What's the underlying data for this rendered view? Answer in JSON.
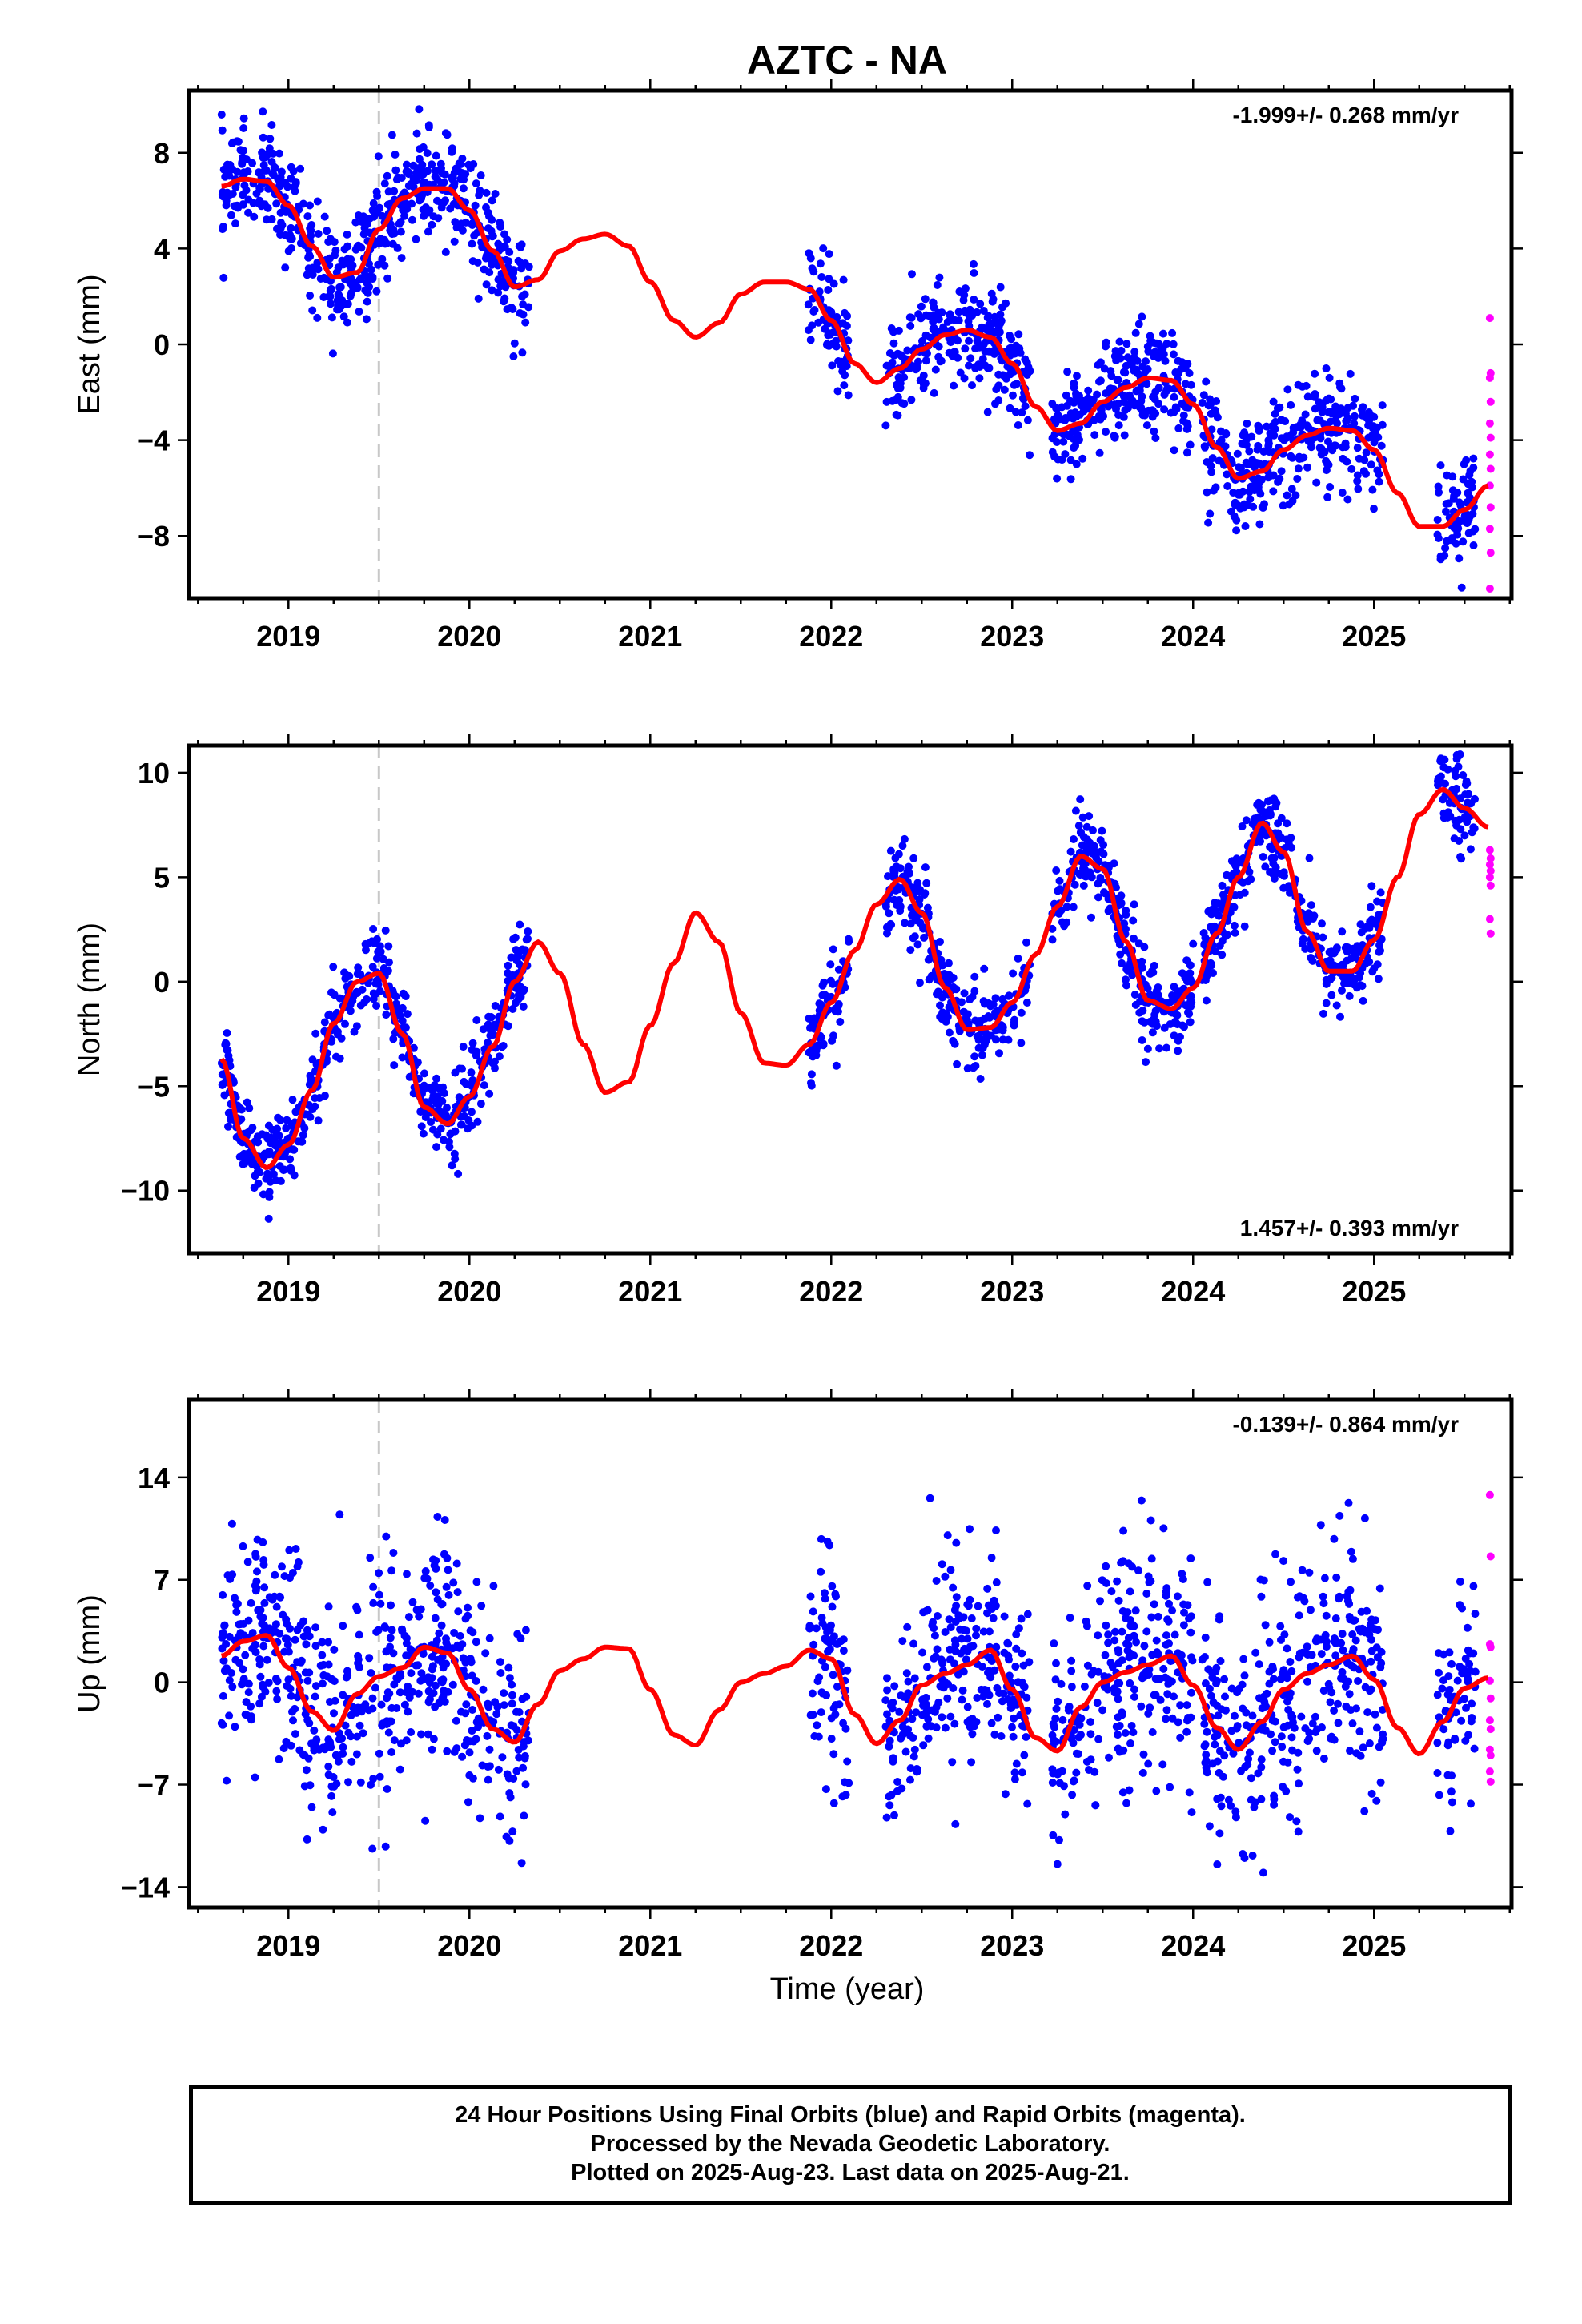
{
  "title": "AZTC - NA",
  "colors": {
    "final": "#0000ff",
    "rapid": "#ff00ff",
    "model": "#ff0000",
    "event": "#c8c8c8"
  },
  "chart_data": [
    {
      "type": "scatter",
      "ylabel": "East (mm)",
      "rate": "-1.999+/- 0.268 mm/yr",
      "rate_position": "top-right",
      "xlim": [
        2018.45,
        2025.76
      ],
      "ylim": [
        -10.6,
        10.6
      ],
      "yticks": [
        -8,
        -4,
        0,
        4,
        8
      ],
      "ytick_labels": [
        "−8",
        "−4",
        "0",
        "4",
        "8"
      ],
      "xticks": [
        2019,
        2020,
        2021,
        2022,
        2023,
        2024,
        2025
      ],
      "event_lines": [
        2019.5
      ],
      "model": {
        "x": [
          2018.63,
          2018.75,
          2018.88,
          2019.0,
          2019.13,
          2019.25,
          2019.38,
          2019.5,
          2019.63,
          2019.75,
          2019.88,
          2020.0,
          2020.13,
          2020.25,
          2020.38,
          2020.5,
          2020.63,
          2020.75,
          2020.88,
          2021.0,
          2021.13,
          2021.25,
          2021.38,
          2021.5,
          2021.63,
          2021.75,
          2021.88,
          2022.0,
          2022.13,
          2022.25,
          2022.38,
          2022.5,
          2022.63,
          2022.75,
          2022.88,
          2023.0,
          2023.13,
          2023.25,
          2023.38,
          2023.5,
          2023.63,
          2023.75,
          2023.88,
          2024.0,
          2024.13,
          2024.25,
          2024.38,
          2024.5,
          2024.63,
          2024.75,
          2024.88,
          2025.0,
          2025.13,
          2025.25,
          2025.38,
          2025.5,
          2025.63
        ],
        "y": [
          6.6,
          6.9,
          6.8,
          5.8,
          4.1,
          2.8,
          3.0,
          4.8,
          6.1,
          6.5,
          6.5,
          5.6,
          3.9,
          2.4,
          2.7,
          3.9,
          4.4,
          4.6,
          4.1,
          2.6,
          1.0,
          0.3,
          0.9,
          2.1,
          2.6,
          2.6,
          2.3,
          1.0,
          -0.8,
          -1.6,
          -1.0,
          -0.2,
          0.4,
          0.6,
          0.3,
          -0.8,
          -2.6,
          -3.6,
          -3.3,
          -2.4,
          -1.8,
          -1.4,
          -1.5,
          -2.5,
          -4.3,
          -5.6,
          -5.3,
          -4.4,
          -3.8,
          -3.5,
          -3.6,
          -4.4,
          -6.2,
          -7.6,
          -7.6,
          -6.9,
          -5.9
        ]
      },
      "segments": [
        [
          2018.63,
          2019.65
        ],
        [
          2019.65,
          2020.33
        ],
        [
          2021.87,
          2022.1
        ],
        [
          2022.3,
          2023.1
        ],
        [
          2023.22,
          2024.0
        ],
        [
          2024.05,
          2025.05
        ],
        [
          2025.35,
          2025.56
        ]
      ],
      "rapid_values": [
        1.1,
        -1.2,
        -1.4,
        -2.4,
        -3.3,
        -3.9,
        -4.6,
        -5.2,
        -5.9,
        -6.8,
        -7.7,
        -8.7,
        -10.2
      ],
      "rapid_x": [
        2025.64,
        2025.64
      ]
    },
    {
      "type": "scatter",
      "ylabel": "North (mm)",
      "rate": "1.457+/- 0.393 mm/yr",
      "rate_position": "bottom-right",
      "xlim": [
        2018.45,
        2025.76
      ],
      "ylim": [
        -13.0,
        11.3
      ],
      "yticks": [
        -10,
        -5,
        0,
        5,
        10
      ],
      "ytick_labels": [
        "−10",
        "−5",
        "0",
        "5",
        "10"
      ],
      "xticks": [
        2019,
        2020,
        2021,
        2022,
        2023,
        2024,
        2025
      ],
      "event_lines": [
        2019.5
      ],
      "model": {
        "x": [
          2018.63,
          2018.75,
          2018.88,
          2019.0,
          2019.13,
          2019.25,
          2019.38,
          2019.5,
          2019.63,
          2019.75,
          2019.88,
          2020.0,
          2020.13,
          2020.25,
          2020.38,
          2020.5,
          2020.63,
          2020.75,
          2020.88,
          2021.0,
          2021.13,
          2021.25,
          2021.38,
          2021.5,
          2021.63,
          2021.75,
          2021.88,
          2022.0,
          2022.13,
          2022.25,
          2022.38,
          2022.5,
          2022.63,
          2022.75,
          2022.88,
          2023.0,
          2023.13,
          2023.25,
          2023.38,
          2023.5,
          2023.63,
          2023.75,
          2023.88,
          2024.0,
          2024.13,
          2024.25,
          2024.38,
          2024.5,
          2024.63,
          2024.75,
          2024.88,
          2025.0,
          2025.13,
          2025.25,
          2025.38,
          2025.5,
          2025.63
        ],
        "y": [
          -3.7,
          -7.5,
          -8.9,
          -7.8,
          -5.2,
          -2.0,
          0.0,
          0.4,
          -2.5,
          -6.0,
          -6.8,
          -5.5,
          -3.1,
          0.0,
          1.9,
          0.4,
          -3.0,
          -5.3,
          -4.8,
          -2.1,
          0.9,
          3.3,
          1.9,
          -1.5,
          -3.9,
          -4.0,
          -3.0,
          -1.0,
          1.5,
          3.7,
          4.9,
          3.3,
          -0.3,
          -2.3,
          -2.2,
          -1.0,
          1.3,
          3.6,
          6.0,
          5.4,
          1.9,
          -0.9,
          -1.3,
          -0.3,
          2.3,
          5.0,
          7.6,
          6.2,
          2.4,
          0.5,
          0.5,
          2.0,
          5.0,
          8.0,
          9.2,
          8.3,
          7.4
        ]
      },
      "segments": [
        [
          2018.63,
          2019.65
        ],
        [
          2019.65,
          2020.33
        ],
        [
          2021.87,
          2022.1
        ],
        [
          2022.3,
          2023.1
        ],
        [
          2023.22,
          2024.0
        ],
        [
          2024.05,
          2025.05
        ],
        [
          2025.35,
          2025.56
        ]
      ],
      "rapid_values": [
        6.3,
        5.9,
        5.6,
        5.3,
        5.0,
        4.6,
        3.0,
        2.3
      ],
      "rapid_x": [
        2025.64,
        2025.64
      ]
    },
    {
      "type": "scatter",
      "ylabel": "Up (mm)",
      "rate": "-0.139+/- 0.864 mm/yr",
      "rate_position": "top-right",
      "xlet": "Time (year)",
      "xlabel": "Time (year)",
      "xlim": [
        2018.45,
        2025.76
      ],
      "ylim": [
        -15.4,
        19.3
      ],
      "yticks": [
        -14,
        -7,
        0,
        7,
        14
      ],
      "ytick_labels": [
        "−14",
        "−7",
        "0",
        "7",
        "14"
      ],
      "xticks": [
        2019,
        2020,
        2021,
        2022,
        2023,
        2024,
        2025
      ],
      "event_lines": [
        2019.5
      ],
      "model": {
        "x": [
          2018.63,
          2018.75,
          2018.88,
          2019.0,
          2019.13,
          2019.25,
          2019.38,
          2019.5,
          2019.63,
          2019.75,
          2019.88,
          2020.0,
          2020.13,
          2020.25,
          2020.38,
          2020.5,
          2020.63,
          2020.75,
          2020.88,
          2021.0,
          2021.13,
          2021.25,
          2021.38,
          2021.5,
          2021.63,
          2021.75,
          2021.88,
          2022.0,
          2022.13,
          2022.25,
          2022.38,
          2022.5,
          2022.63,
          2022.75,
          2022.88,
          2023.0,
          2023.13,
          2023.25,
          2023.38,
          2023.5,
          2023.63,
          2023.75,
          2023.88,
          2024.0,
          2024.13,
          2024.25,
          2024.38,
          2024.5,
          2024.63,
          2024.75,
          2024.88,
          2025.0,
          2025.13,
          2025.25,
          2025.38,
          2025.5,
          2025.63
        ],
        "y": [
          1.8,
          2.8,
          3.2,
          1.0,
          -2.0,
          -3.3,
          -0.8,
          0.4,
          1.0,
          2.4,
          2.0,
          -0.5,
          -3.2,
          -4.1,
          -1.5,
          0.8,
          1.6,
          2.4,
          2.3,
          -0.5,
          -3.6,
          -4.3,
          -1.9,
          0.0,
          0.6,
          1.1,
          2.2,
          1.6,
          -2.2,
          -4.2,
          -2.6,
          -0.2,
          0.6,
          1.2,
          2.2,
          -0.5,
          -3.8,
          -4.7,
          -1.7,
          0.0,
          0.7,
          1.2,
          1.8,
          -0.2,
          -3.1,
          -4.6,
          -2.7,
          -0.5,
          0.6,
          1.2,
          1.8,
          0.2,
          -3.1,
          -4.9,
          -2.7,
          -0.4,
          0.3
        ]
      },
      "segments": [
        [
          2018.63,
          2019.65
        ],
        [
          2019.65,
          2020.33
        ],
        [
          2021.87,
          2022.1
        ],
        [
          2022.3,
          2023.1
        ],
        [
          2023.22,
          2024.0
        ],
        [
          2024.05,
          2025.05
        ],
        [
          2025.35,
          2025.56
        ]
      ],
      "rapid_values": [
        12.8,
        8.6,
        2.6,
        2.4,
        0.1,
        -1.1,
        -2.6,
        -3.2,
        -4.6,
        -5.0,
        -6.1,
        -6.8
      ],
      "rapid_x": [
        2025.64,
        2025.64
      ]
    }
  ],
  "caption": {
    "line1": "24 Hour Positions Using Final Orbits (blue) and Rapid Orbits (magenta).",
    "line2": "Processed by the Nevada Geodetic Laboratory.",
    "line3": "Plotted on 2025-Aug-23. Last data on 2025-Aug-21."
  }
}
